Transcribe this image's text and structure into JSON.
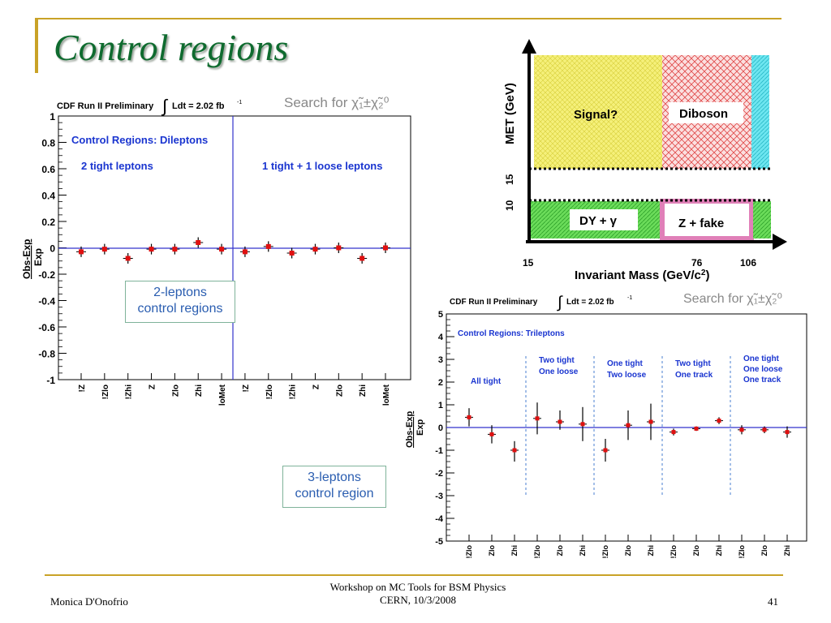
{
  "slide": {
    "title": "Control regions",
    "footer_left": "Monica D'Onofrio",
    "footer_center_line1": "Workshop on MC Tools for BSM Physics",
    "footer_center_line2": "CERN, 10/3/2008",
    "page_number": "41",
    "label_2lep_line1": "2-leptons",
    "label_2lep_line2": "control regions",
    "label_3lep_line1": "3-leptons",
    "label_3lep_line2": "control region"
  },
  "colors": {
    "title": "#0f6b2f",
    "frame_gold": "#c9a227",
    "marker_red": "#e01010",
    "axis_blue": "#3333cc",
    "label_blue": "#1a35d0"
  },
  "chart_data": [
    {
      "type": "scatter",
      "header_left": "CDF Run II Preliminary",
      "header_integral": "∫",
      "header_lumi": "Ldt = 2.02 fb",
      "header_lumi_exp": "-1",
      "header_search": "Search for χ̃₁±χ̃₂⁰",
      "ylabel_top": "Obs-Exp",
      "ylabel_bottom": "Exp",
      "ylim": [
        -1,
        1
      ],
      "yticks": [
        "1",
        "0.8",
        "0.6",
        "0.4",
        "0.2",
        "0",
        "-0.2",
        "-0.4",
        "-0.6",
        "-0.8",
        "-1"
      ],
      "annotations": [
        "Control Regions: Dileptons",
        "2 tight leptons",
        "1 tight + 1 loose leptons"
      ],
      "categories": [
        "!Z",
        "!Zlo",
        "!Zhi",
        "Z",
        "Zlo",
        "Zhi",
        "loMet",
        "!Z",
        "!Zlo",
        "!Zhi",
        "Z",
        "Zlo",
        "Zhi",
        "loMet"
      ],
      "values": [
        -0.03,
        -0.01,
        -0.08,
        -0.01,
        -0.01,
        0.04,
        -0.01,
        -0.03,
        0.01,
        -0.04,
        -0.01,
        0.0,
        -0.08,
        0.0
      ],
      "errors": [
        0.04,
        0.04,
        0.04,
        0.04,
        0.04,
        0.04,
        0.04,
        0.04,
        0.04,
        0.04,
        0.04,
        0.04,
        0.04,
        0.04
      ],
      "grid": false
    },
    {
      "type": "diagram",
      "ylabel": "MET (GeV)",
      "xlabel": "Invariant Mass (GeV/c",
      "xlabel_sup": "2",
      "xlabel_close": ")",
      "x_tick_15": "15",
      "x_tick_76": "76",
      "x_tick_106": "106",
      "y_tick_10": "10",
      "y_tick_15": "15",
      "region_signal": "Signal?",
      "region_diboson": "Diboson",
      "region_dy": "DY + γ",
      "region_zfake": "Z + fake"
    },
    {
      "type": "scatter",
      "header_left": "CDF Run II Preliminary",
      "header_integral": "∫",
      "header_lumi": "Ldt = 2.02 fb",
      "header_lumi_exp": "-1",
      "header_search": "Search for χ̃₁±χ̃₂⁰",
      "ylabel_top": "Obs-Exp",
      "ylabel_bottom": "Exp",
      "ylim": [
        -5,
        5
      ],
      "yticks": [
        "5",
        "4",
        "3",
        "2",
        "1",
        "0",
        "-1",
        "-2",
        "-3",
        "-4",
        "-5"
      ],
      "annotation_title": "Control Regions: Trileptons",
      "groups": [
        {
          "lines": [
            "All tight"
          ]
        },
        {
          "lines": [
            "Two tight",
            "One loose"
          ]
        },
        {
          "lines": [
            "One tight",
            "Two loose"
          ]
        },
        {
          "lines": [
            "Two tight",
            "One track"
          ]
        },
        {
          "lines": [
            "One tight",
            "One loose",
            "One track"
          ]
        }
      ],
      "categories": [
        "!Zlo",
        "Zlo",
        "Zhi",
        "!Zlo",
        "Zlo",
        "Zhi",
        "!Zlo",
        "Zlo",
        "Zhi",
        "!Zlo",
        "Zlo",
        "Zhi",
        "!Zlo",
        "Zlo",
        "Zhi"
      ],
      "values": [
        0.45,
        -0.3,
        -1.0,
        0.4,
        0.25,
        0.15,
        -1.0,
        0.1,
        0.25,
        -0.2,
        -0.05,
        0.3,
        -0.1,
        -0.1,
        -0.2
      ],
      "errors_up": [
        0.4,
        0.4,
        0.4,
        0.7,
        0.5,
        0.75,
        0.5,
        0.65,
        0.8,
        0.15,
        0.1,
        0.15,
        0.2,
        0.15,
        0.25
      ],
      "errors_down": [
        0.4,
        0.4,
        0.5,
        0.7,
        0.35,
        0.75,
        0.5,
        0.65,
        0.8,
        0.15,
        0.1,
        0.15,
        0.2,
        0.15,
        0.25
      ],
      "grid": false
    }
  ]
}
